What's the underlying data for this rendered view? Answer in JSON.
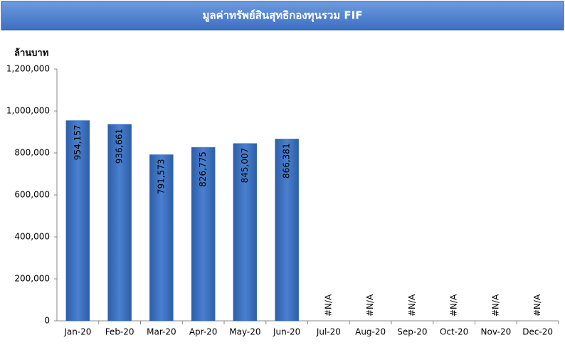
{
  "chart_data": {
    "type": "bar",
    "title": "มูลค่าทรัพย์สินสุทธิกองทุนรวม FIF",
    "y_label": "ล้านบาท",
    "categories": [
      "Jan-20",
      "Feb-20",
      "Mar-20",
      "Apr-20",
      "May-20",
      "Jun-20",
      "Jul-20",
      "Aug-20",
      "Sep-20",
      "Oct-20",
      "Nov-20",
      "Dec-20"
    ],
    "values": [
      954157,
      936661,
      791573,
      826775,
      845007,
      866381,
      null,
      null,
      null,
      null,
      null,
      null
    ],
    "value_labels": [
      "954,157",
      "936,661",
      "791,573",
      "826,775",
      "845,007",
      "866,381",
      "#N/A",
      "#N/A",
      "#N/A",
      "#N/A",
      "#N/A",
      "#N/A"
    ],
    "color": "#3568b8",
    "ylim": [
      0,
      1200000
    ],
    "yticks": [
      0,
      {
        "value": 200000,
        "label": "200,000"
      },
      {
        "value": 400000,
        "label": "400,000"
      },
      {
        "value": 600000,
        "label": "600,000"
      },
      {
        "value": 800000,
        "label": "800,000"
      },
      {
        "value": 1000000,
        "label": "1,000,000"
      },
      {
        "value": 1200000,
        "label": "1,200,000"
      }
    ],
    "grid": false
  }
}
